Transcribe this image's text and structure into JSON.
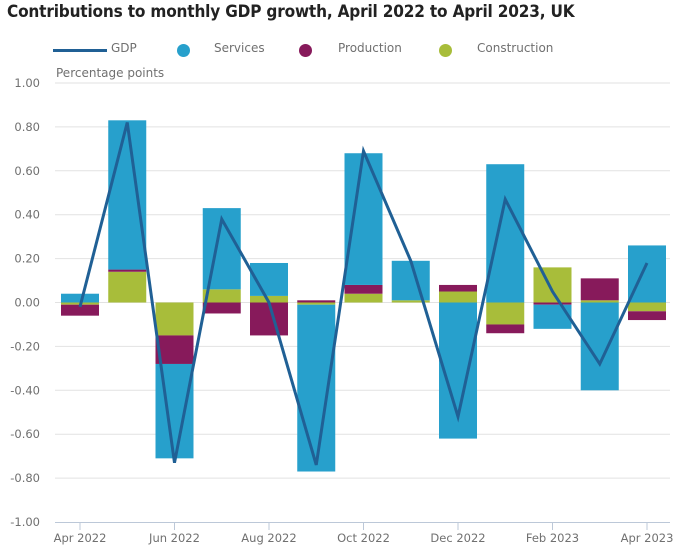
{
  "chart_data": {
    "type": "bar",
    "stacked": true,
    "title": "Contributions to monthly GDP growth, April 2022 to April 2023, UK",
    "ylabel": "Percentage points",
    "xlabel": "",
    "ylim": [
      -1.0,
      1.0
    ],
    "yticks": [
      "1.00",
      "0.80",
      "0.60",
      "0.40",
      "0.20",
      "0.00",
      "-0.20",
      "-0.40",
      "-0.60",
      "-0.80",
      "-1.00"
    ],
    "ytick_values": [
      1.0,
      0.8,
      0.6,
      0.4,
      0.2,
      0.0,
      -0.2,
      -0.4,
      -0.6,
      -0.8,
      -1.0
    ],
    "grid": true,
    "legend_position": "top",
    "categories": [
      "Apr 2022",
      "May 2022",
      "Jun 2022",
      "Jul 2022",
      "Aug 2022",
      "Sep 2022",
      "Oct 2022",
      "Nov 2022",
      "Dec 2022",
      "Jan 2023",
      "Feb 2023",
      "Mar 2023",
      "Apr 2023"
    ],
    "xtick_labels": [
      {
        "index": 0,
        "label": "Apr 2022"
      },
      {
        "index": 2,
        "label": "Jun 2022"
      },
      {
        "index": 4,
        "label": "Aug 2022"
      },
      {
        "index": 6,
        "label": "Oct 2022"
      },
      {
        "index": 8,
        "label": "Dec 2022"
      },
      {
        "index": 10,
        "label": "Feb 2023"
      },
      {
        "index": 12,
        "label": "Apr 2023"
      }
    ],
    "series": [
      {
        "name": "Construction",
        "type": "bar",
        "color": "#a8bd3a",
        "values": [
          -0.01,
          0.14,
          -0.15,
          0.06,
          0.03,
          -0.01,
          0.04,
          0.01,
          0.05,
          -0.1,
          0.16,
          0.01,
          -0.04
        ]
      },
      {
        "name": "Production",
        "type": "bar",
        "color": "#871a5b",
        "values": [
          -0.05,
          0.01,
          -0.13,
          -0.05,
          -0.15,
          0.01,
          0.04,
          0.0,
          0.03,
          -0.04,
          -0.01,
          0.1,
          -0.04
        ]
      },
      {
        "name": "Services",
        "type": "bar",
        "color": "#27a0cc",
        "values": [
          0.04,
          0.68,
          -0.43,
          0.37,
          0.15,
          -0.76,
          0.6,
          0.18,
          -0.62,
          0.63,
          -0.11,
          -0.4,
          0.26
        ]
      },
      {
        "name": "GDP",
        "type": "line",
        "color": "#206095",
        "values": [
          -0.02,
          0.82,
          -0.73,
          0.38,
          0.0,
          -0.74,
          0.69,
          0.19,
          -0.52,
          0.47,
          0.05,
          -0.28,
          0.18
        ]
      }
    ],
    "legend": [
      {
        "name": "GDP",
        "marker": "line",
        "color": "#206095"
      },
      {
        "name": "Services",
        "marker": "dot",
        "color": "#27a0cc"
      },
      {
        "name": "Production",
        "marker": "dot",
        "color": "#871a5b"
      },
      {
        "name": "Construction",
        "marker": "dot",
        "color": "#a8bd3a"
      }
    ]
  }
}
